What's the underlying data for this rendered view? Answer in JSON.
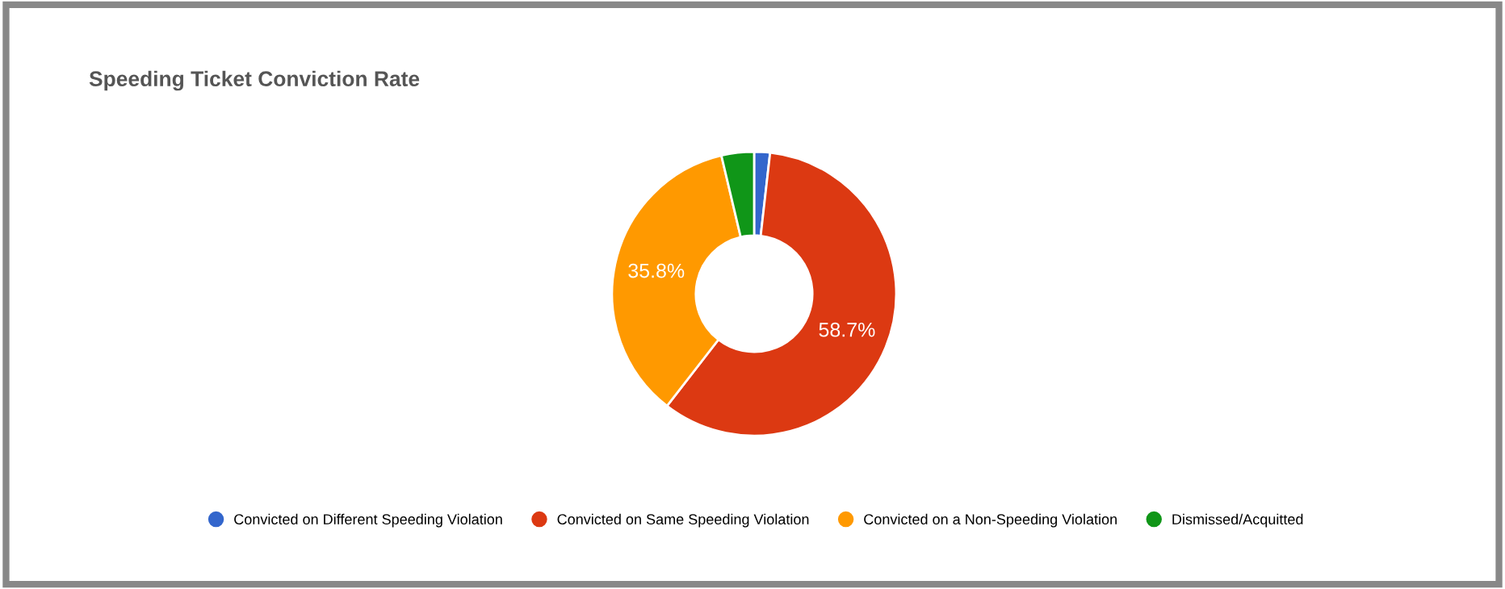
{
  "chart_data": {
    "type": "donut",
    "title": "Speeding Ticket Conviction Rate",
    "categories": [
      "Convicted on Different Speeding Violation",
      "Convicted on Same Speeding Violation",
      "Convicted on a Non-Speeding Violation",
      "Dismissed/Acquitted"
    ],
    "values": [
      1.8,
      58.7,
      35.8,
      3.7
    ],
    "colors": [
      "#3366cc",
      "#dc3912",
      "#ff9900",
      "#109618"
    ],
    "value_labels": [
      null,
      "58.7%",
      "35.8%",
      null
    ],
    "legend": "bottom"
  }
}
